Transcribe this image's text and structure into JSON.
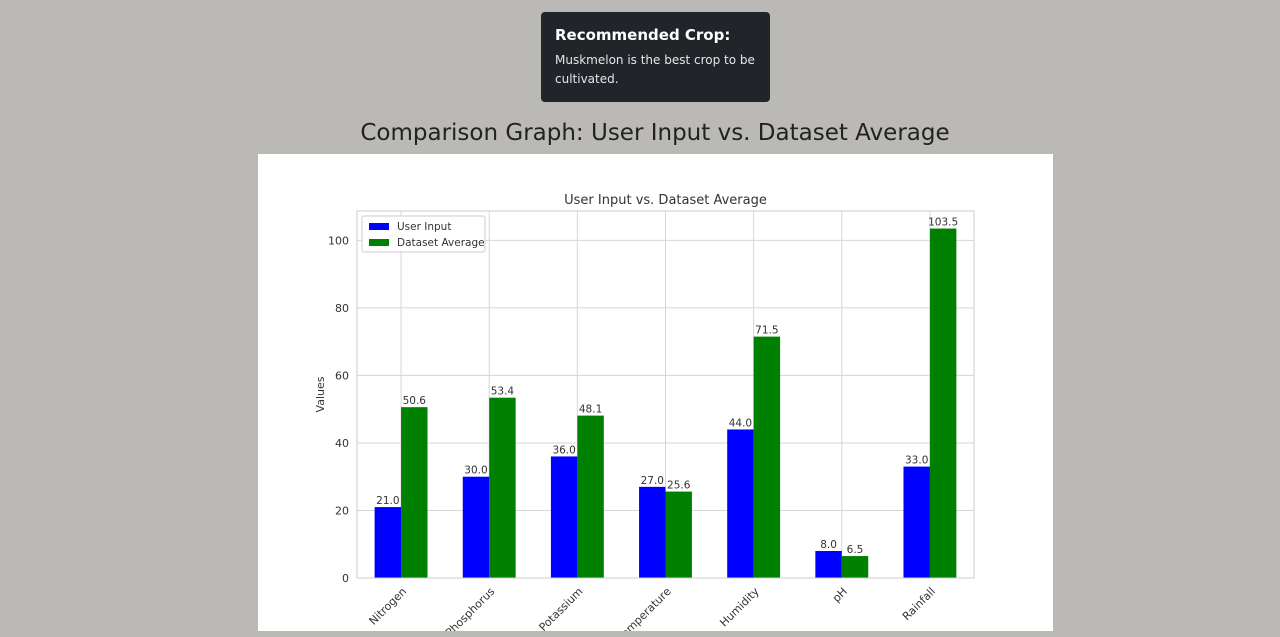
{
  "toast": {
    "title": "Recommended Crop:",
    "message": "Muskmelon is the best crop to be cultivated."
  },
  "graph_heading": "Comparison Graph: User Input vs. Dataset Average",
  "colors": {
    "user_input": "#0000ff",
    "dataset_average": "#008000",
    "toast_bg": "#212529",
    "page_bg": "#bbb9b5"
  },
  "chart_data": {
    "type": "bar",
    "title": "User Input vs. Dataset Average",
    "xlabel": "",
    "ylabel": "Values",
    "ylim": [
      0,
      108.7
    ],
    "yticks": [
      0,
      20,
      40,
      60,
      80,
      100
    ],
    "grid": true,
    "legend_position": "top-left",
    "categories": [
      "Nitrogen",
      "Phosphorus",
      "Potassium",
      "Temperature",
      "Humidity",
      "pH",
      "Rainfall"
    ],
    "series": [
      {
        "name": "User Input",
        "color": "#0000ff",
        "values": [
          21.0,
          30.0,
          36.0,
          27.0,
          44.0,
          8.0,
          33.0
        ]
      },
      {
        "name": "Dataset Average",
        "color": "#008000",
        "values": [
          50.6,
          53.4,
          48.1,
          25.6,
          71.5,
          6.5,
          103.5
        ]
      }
    ]
  }
}
